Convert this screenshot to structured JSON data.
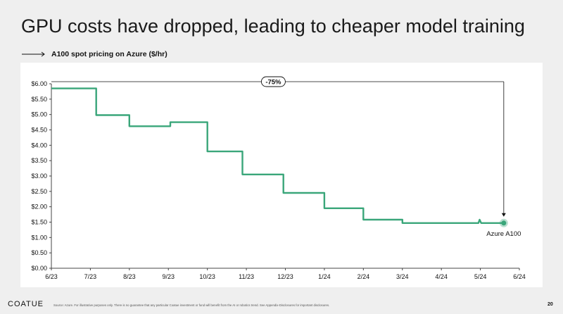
{
  "page": {
    "title": "GPU costs have dropped, leading to cheaper model training",
    "subtitle": "A100 spot pricing on Azure ($/hr)",
    "brand": "COATUE",
    "source": "Source: Azure. For illustrative purposes only. There is no guarantee that any particular Coatue investment or fund will benefit from the AI or robotics trend. See Appendix-Disclosures for important disclosures.",
    "page_number": "20"
  },
  "colors": {
    "line": "#3aa67a",
    "marker": "#3aa67a",
    "text": "#111111"
  },
  "chart_data": {
    "type": "line",
    "title": "A100 spot pricing on Azure ($/hr)",
    "xlabel": "",
    "ylabel": "",
    "ylim": [
      0,
      6.0
    ],
    "yticks": [
      0,
      0.5,
      1.0,
      1.5,
      2.0,
      2.5,
      3.0,
      3.5,
      4.0,
      4.5,
      5.0,
      5.5,
      6.0
    ],
    "ytick_labels": [
      "$0.00",
      "$0.50",
      "$1.00",
      "$1.50",
      "$2.00",
      "$2.50",
      "$3.00",
      "$3.50",
      "$4.00",
      "$4.50",
      "$5.00",
      "$5.50",
      "$6.00"
    ],
    "xlim": [
      0,
      12
    ],
    "xtick_labels": [
      "6/23",
      "7/23",
      "8/23",
      "9/23",
      "10/23",
      "11/23",
      "12/23",
      "1/24",
      "2/24",
      "3/24",
      "4/24",
      "5/24",
      "6/24"
    ],
    "series": [
      {
        "name": "Azure A100",
        "shape": "step",
        "x": [
          0,
          1.15,
          1.15,
          2.0,
          2.0,
          3.05,
          3.05,
          4.0,
          4.0,
          4.9,
          4.9,
          5.95,
          5.95,
          7.0,
          7.0,
          8.0,
          8.0,
          9.0,
          9.0,
          10.95,
          10.98,
          11.02,
          11.6
        ],
        "y": [
          5.85,
          5.85,
          4.98,
          4.98,
          4.62,
          4.62,
          4.75,
          4.75,
          3.8,
          3.8,
          3.05,
          3.05,
          2.45,
          2.45,
          1.95,
          1.95,
          1.58,
          1.58,
          1.47,
          1.47,
          1.58,
          1.47,
          1.47
        ]
      }
    ],
    "end_label": "Azure A100",
    "annotation": {
      "text": "-75%",
      "from_x": 0,
      "from_y": 5.85,
      "to_x": 11.6,
      "to_y": 1.47
    }
  }
}
